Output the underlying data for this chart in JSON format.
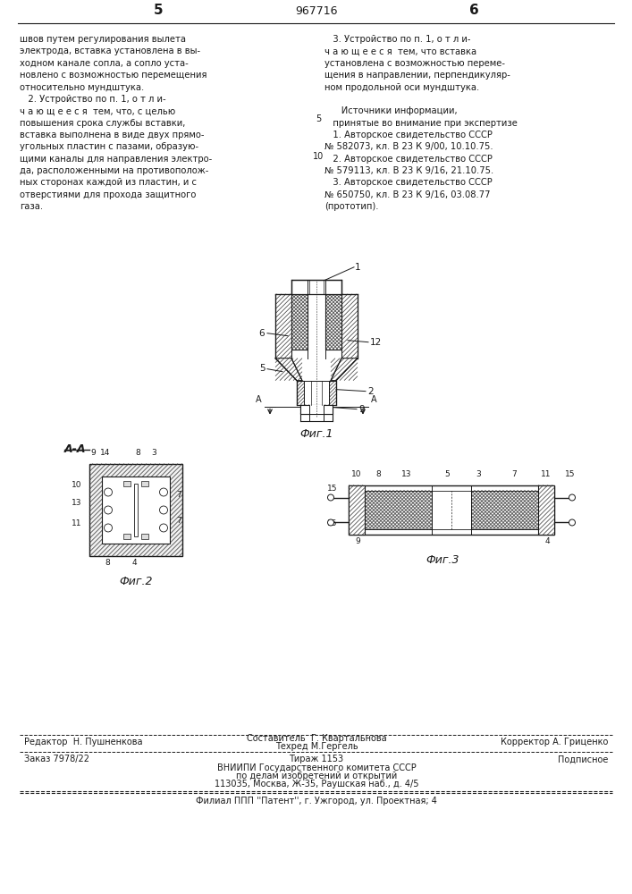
{
  "bg_color": "#ffffff",
  "text_color": "#1a1a1a",
  "page_left_num": "5",
  "page_center_num": "967716",
  "page_right_num": "6",
  "left_col_text": "швов путем регулирования вылета\nэлектрода, вставка установлена в вы-\nходном канале сопла, а сопло уста-\nновлено с возможностью перемещения\nотносительно мундштука.\n   2. Устройство по п. 1, о т л и-\nч а ю щ е е с я  тем, что, с целью\nповышения срока службы вставки,\nвставка выполнена в виде двух прямо-\nугольных пластин с пазами, образую-\nщими каналы для направления электро-\nда, расположенными на противополож-\nных сторонах каждой из пластин, и с\nотверстиями для прохода защитного\nгаза.",
  "right_col_text": "   3. Устройство по п. 1, о т л и-\nч а ю щ е е с я  тем, что вставка\nустановлена с возможностью переме-\nщения в направлении, перпендикуляр-\nном продольной оси мундштука.\n\n      Источники информации,\n   принятые во внимание при экспертизе\n   1. Авторское свидетельство СССР\n№ 582073, кл. В 23 К 9/00, 10.10.75.\n   2. Авторское свидетельство СССР\n№ 579113, кл. В 23 К 9/16, 21.10.75.\n   3. Авторское свидетельство СССР\n№ 650750, кл. В 23 К 9/16, 03.08.77\n(прототип).",
  "fig1_label": "Фиг.1",
  "fig2_label": "Фиг.2",
  "fig3_label": "Фиг.3",
  "aa_label": "А-А",
  "footer_editor": "Редактор  Н. Пушненкова",
  "footer_composer": "Составитель  Г. Квартальнова",
  "footer_corrector": "Корректор А. Гриценко",
  "footer_techred": "Техред М.Гергель",
  "footer_order": "Заказ 7978/22",
  "footer_tirazh": "Тираж 1153",
  "footer_podpisnoe": "Подписное",
  "footer_vniip": "ВНИИПИ Государственного комитета СССР",
  "footer_vniip2": "по делам изобретений и открытий",
  "footer_addr": "113035, Москва, Ж-35, Раушская наб., д. 4/5",
  "footer_filial": "Филиал ППП ''Патент'', г. Ужгород, ул. Проектная; 4"
}
